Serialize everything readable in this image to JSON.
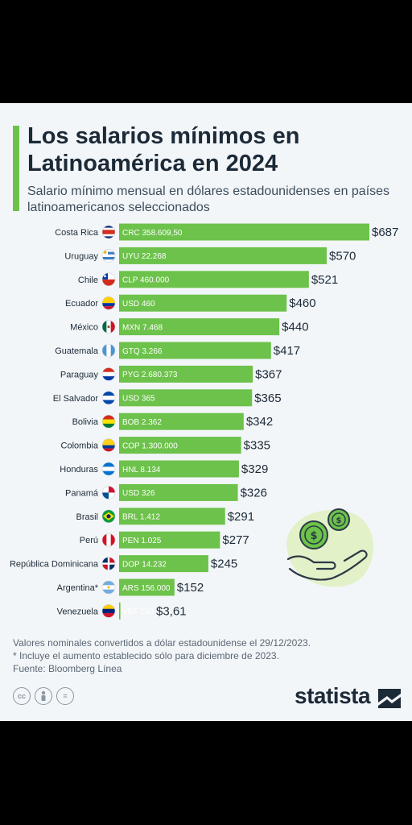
{
  "header": {
    "title": "Los salarios mínimos en Latinoamérica en 2024",
    "subtitle": "Salario mínimo mensual en dólares estadounidenses en países latinoamericanos seleccionados"
  },
  "chart_data": {
    "type": "bar",
    "orientation": "horizontal",
    "title": "Los salarios mínimos en Latinoamérica en 2024",
    "subtitle": "Salario mínimo mensual en dólares estadounidenses en países latinoamericanos seleccionados",
    "unit": "USD",
    "bar_color": "#6cc24a",
    "categories": [
      "Costa Rica",
      "Uruguay",
      "Chile",
      "Ecuador",
      "México",
      "Guatemala",
      "Paraguay",
      "El Salvador",
      "Bolivia",
      "Colombia",
      "Honduras",
      "Panamá",
      "Brasil",
      "Perú",
      "República Dominicana",
      "Argentina*",
      "Venezuela"
    ],
    "values": [
      687,
      570,
      521,
      460,
      440,
      417,
      367,
      365,
      342,
      335,
      329,
      326,
      291,
      277,
      245,
      152,
      3.61
    ],
    "value_labels": [
      "$687",
      "$570",
      "$521",
      "$460",
      "$440",
      "$417",
      "$367",
      "$365",
      "$342",
      "$335",
      "$329",
      "$326",
      "$291",
      "$277",
      "$245",
      "$152",
      "$3,61"
    ],
    "local_labels": [
      "CRC 358.609,50",
      "UYU 22.268",
      "CLP 460.000",
      "USD 460",
      "MXN 7.468",
      "GTQ 3.266",
      "PYG 2.680.373",
      "USD 365",
      "BOB 2.362",
      "COP 1.300.000",
      "HNL 8.134",
      "USD 326",
      "BRL 1.412",
      "PEN 1.025",
      "DOP 14.232",
      "ARS 156.000",
      "VEF 130"
    ],
    "flag_icons": [
      "costa-rica-flag-icon",
      "uruguay-flag-icon",
      "chile-flag-icon",
      "ecuador-flag-icon",
      "mexico-flag-icon",
      "guatemala-flag-icon",
      "paraguay-flag-icon",
      "el-salvador-flag-icon",
      "bolivia-flag-icon",
      "colombia-flag-icon",
      "honduras-flag-icon",
      "panama-flag-icon",
      "brazil-flag-icon",
      "peru-flag-icon",
      "dominican-republic-flag-icon",
      "argentina-flag-icon",
      "venezuela-flag-icon"
    ],
    "xlim": [
      0,
      687
    ],
    "grid": false,
    "legend": "none"
  },
  "footer": {
    "note1": "Valores nominales convertidos a dólar estadounidense el 29/12/2023.",
    "note2": "* Incluye el aumento establecido sólo para diciembre de 2023.",
    "source": "Fuente: Bloomberg Línea"
  },
  "license": {
    "icons": [
      "cc-icon",
      "attribution-icon",
      "no-derivatives-icon"
    ],
    "cc": "cc",
    "eq": "="
  },
  "brand": {
    "name": "statista",
    "accent_color": "#6cc24a",
    "title_color": "#1c2a38"
  }
}
